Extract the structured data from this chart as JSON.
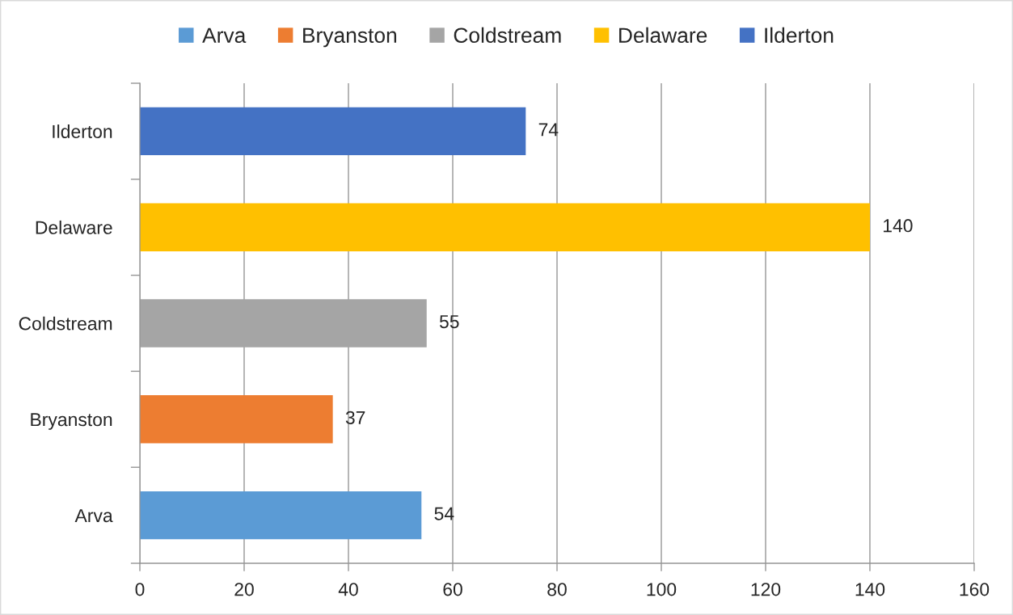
{
  "chart_data": {
    "type": "bar",
    "orientation": "horizontal",
    "categories": [
      "Ilderton",
      "Delaware",
      "Coldstream",
      "Bryanston",
      "Arva"
    ],
    "series": [
      {
        "name": "Arva",
        "color": "#5b9bd5",
        "values": [
          null,
          null,
          null,
          null,
          54
        ]
      },
      {
        "name": "Bryanston",
        "color": "#ed7d31",
        "values": [
          null,
          null,
          null,
          37,
          null
        ]
      },
      {
        "name": "Coldstream",
        "color": "#a5a5a5",
        "values": [
          null,
          null,
          55,
          null,
          null
        ]
      },
      {
        "name": "Delaware",
        "color": "#ffc000",
        "values": [
          null,
          140,
          null,
          null,
          null
        ]
      },
      {
        "name": "Ilderton",
        "color": "#4472c4",
        "values": [
          74,
          null,
          null,
          null,
          null
        ]
      }
    ],
    "xlim": [
      0,
      160
    ],
    "xticks": [
      0,
      20,
      40,
      60,
      80,
      100,
      120,
      140,
      160
    ],
    "grid": "x",
    "legend": "top",
    "data_labels": true
  }
}
